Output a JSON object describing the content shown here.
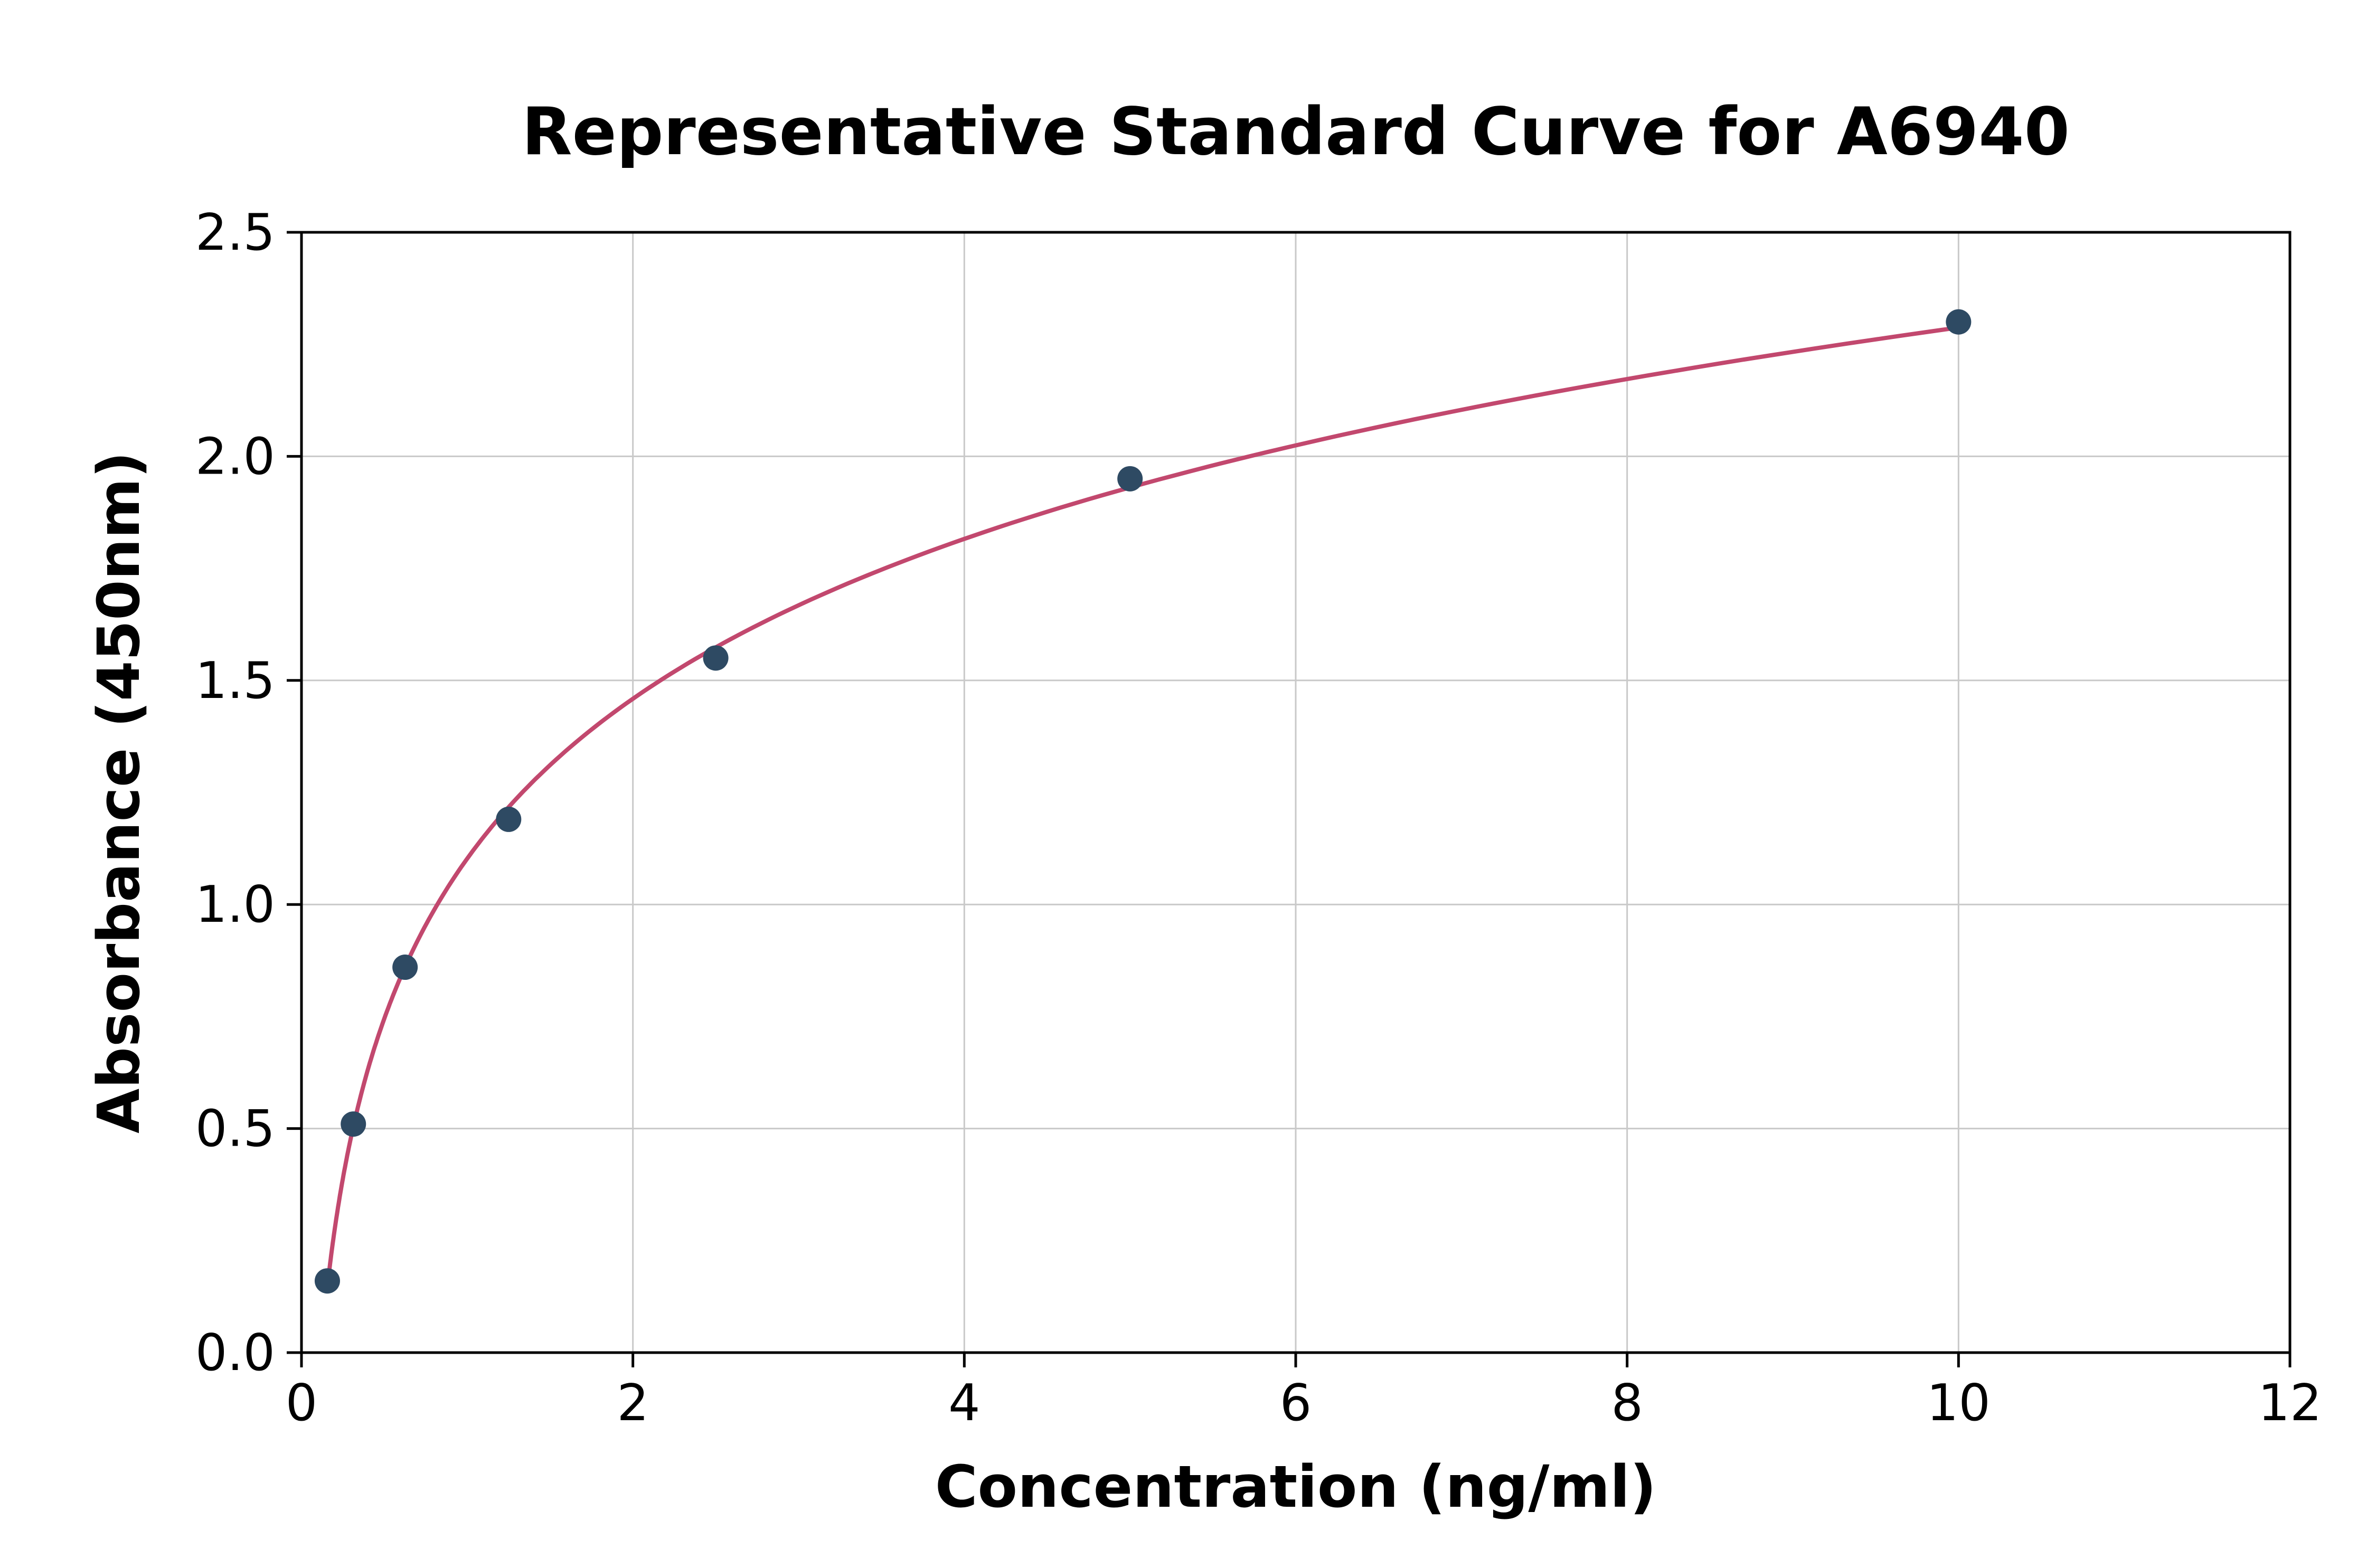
{
  "chart_data": {
    "type": "scatter",
    "title": "Representative Standard Curve for A6940",
    "xlabel": "Concentration (ng/ml)",
    "ylabel": "Absorbance (450nm)",
    "x": [
      0.156,
      0.313,
      0.625,
      1.25,
      2.5,
      5,
      10
    ],
    "y": [
      0.16,
      0.51,
      0.86,
      1.19,
      1.55,
      1.95,
      2.3
    ],
    "fit": "logarithmic",
    "xlim": [
      0,
      12
    ],
    "ylim": [
      0,
      2.5
    ],
    "xticks": [
      0,
      2,
      4,
      6,
      8,
      10,
      12
    ],
    "xtick_labels": [
      "0",
      "2",
      "4",
      "6",
      "8",
      "10",
      "12"
    ],
    "yticks": [
      0,
      0.5,
      1.0,
      1.5,
      2.0,
      2.5
    ],
    "ytick_labels": [
      "0.0",
      "0.5",
      "1.0",
      "1.5",
      "2.0",
      "2.5"
    ],
    "grid": true,
    "legend": "none",
    "colors": {
      "curve": "#c2486e",
      "points": "#2e4a63",
      "grid": "#c9c9c9",
      "spine": "#000000",
      "background": "#ffffff"
    }
  }
}
